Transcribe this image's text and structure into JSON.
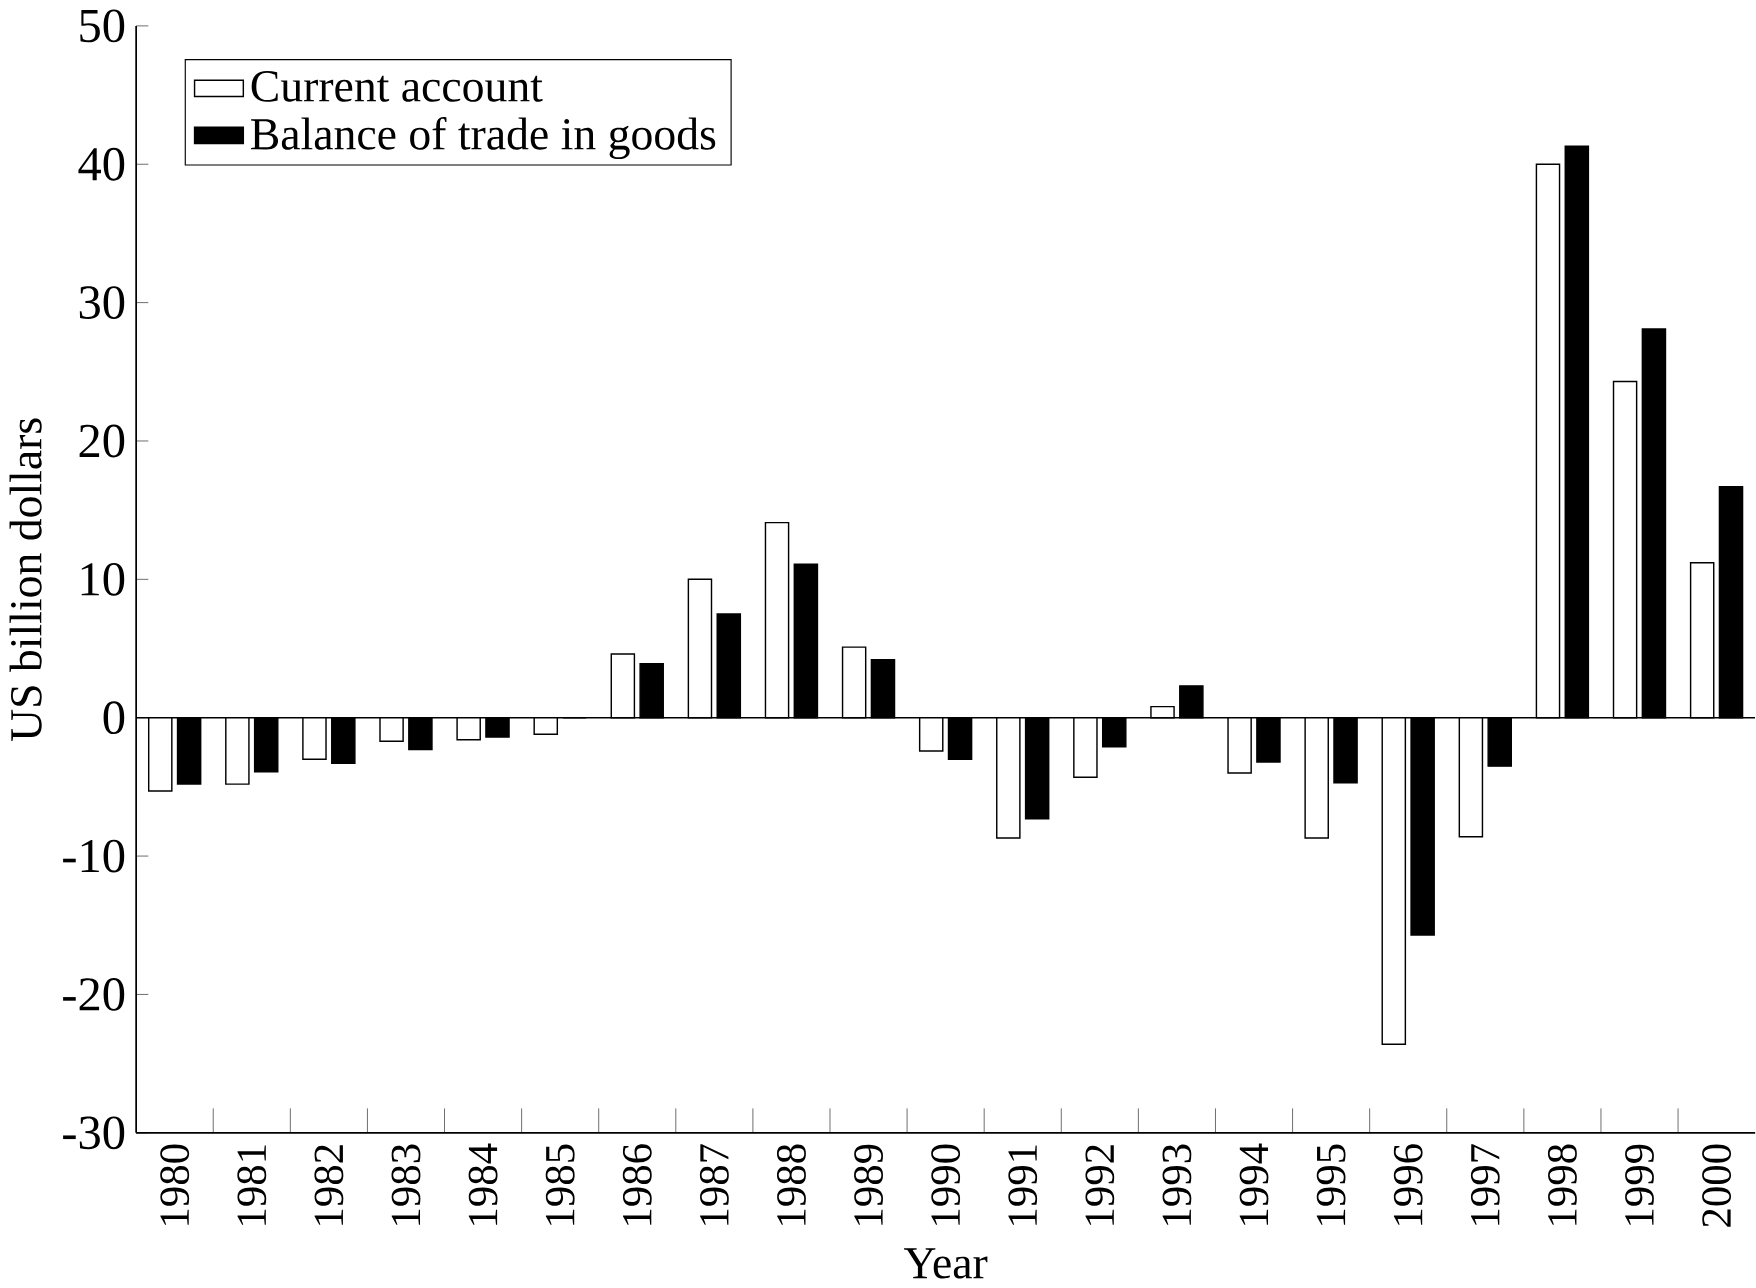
{
  "chart_data": {
    "type": "bar",
    "xlabel": "Year",
    "ylabel": "US billion dollars",
    "categories": [
      "1980",
      "1981",
      "1982",
      "1983",
      "1984",
      "1985",
      "1986",
      "1987",
      "1988",
      "1989",
      "1990",
      "1991",
      "1992",
      "1993",
      "1994",
      "1995",
      "1996",
      "1997",
      "1998",
      "1999",
      "2000"
    ],
    "series": [
      {
        "name": "Current account",
        "color": "#ffffff",
        "values": [
          -5.3,
          -4.8,
          -3.0,
          -1.7,
          -1.6,
          -1.2,
          4.6,
          10.0,
          14.1,
          5.1,
          -2.4,
          -8.7,
          -4.3,
          0.8,
          -4.0,
          -8.7,
          -23.6,
          -8.6,
          40.0,
          24.3,
          11.2
        ]
      },
      {
        "name": "Balance of trade in goods",
        "color": "#000000",
        "values": [
          -4.8,
          -3.9,
          -3.3,
          -2.3,
          -1.4,
          0,
          3.9,
          7.5,
          11.1,
          4.2,
          -3.0,
          -7.3,
          -2.1,
          2.3,
          -3.2,
          -4.7,
          -15.7,
          -3.5,
          41.3,
          28.1,
          16.7
        ]
      }
    ],
    "ylim": [
      -30,
      50
    ],
    "yticks": [
      -30,
      -20,
      -10,
      0,
      10,
      20,
      30,
      40,
      50
    ],
    "ref_lines": [
      {
        "axis": "y",
        "value": 0,
        "color": "#000000"
      }
    ],
    "legend": "top left"
  }
}
